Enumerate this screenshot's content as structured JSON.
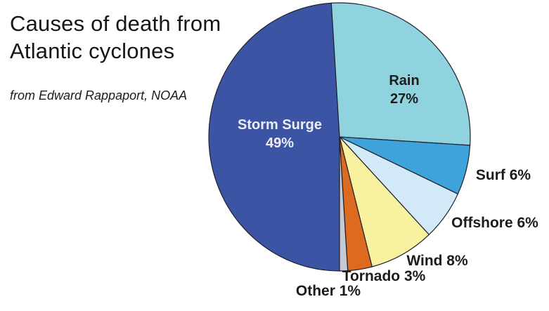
{
  "title": {
    "line1": "Causes of death from",
    "line2": "Atlantic cyclones"
  },
  "attribution": "from Edward Rappaport, NOAA",
  "chart_data": {
    "type": "pie",
    "title": "Causes of death from Atlantic cyclones",
    "source": "from Edward Rappaport, NOAA",
    "units": "percent",
    "start_angle_deg": 180,
    "direction": "clockwise",
    "outline_color": "#20202e",
    "slices": [
      {
        "label": "Storm Surge",
        "value": 49,
        "color": "#3b54a4",
        "label_placement": "inside",
        "text_color": "#ecedf6"
      },
      {
        "label": "Rain",
        "value": 27,
        "color": "#8ed3de",
        "label_placement": "inside",
        "text_color": "#1c1c1c"
      },
      {
        "label": "Surf",
        "value": 6,
        "color": "#3ea3db",
        "label_placement": "outside"
      },
      {
        "label": "Offshore",
        "value": 6,
        "color": "#d2e9f7",
        "label_placement": "outside"
      },
      {
        "label": "Wind",
        "value": 8,
        "color": "#f8f1a0",
        "label_placement": "outside"
      },
      {
        "label": "Tornado",
        "value": 3,
        "color": "#dc6a20",
        "label_placement": "outside"
      },
      {
        "label": "Other",
        "value": 1,
        "color": "#c5c9d1",
        "label_placement": "outside"
      }
    ]
  },
  "labels": {
    "storm_surge_name": "Storm Surge",
    "storm_surge_pct": "49%",
    "rain_name": "Rain",
    "rain_pct": "27%",
    "surf": "Surf 6%",
    "offshore": "Offshore 6%",
    "wind": "Wind 8%",
    "tornado": "Tornado 3%",
    "other": "Other 1%"
  }
}
